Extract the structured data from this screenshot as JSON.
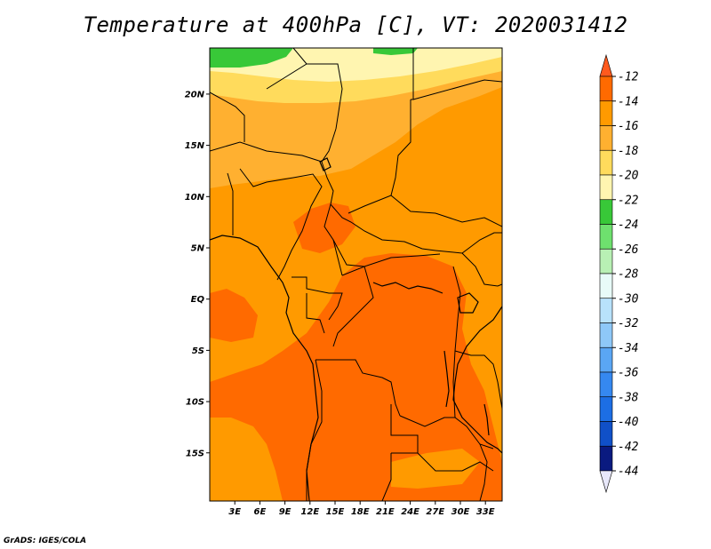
{
  "title": "Temperature at 400hPa [C], VT: 2020031412",
  "credit": "GrADS: IGES/COLA",
  "map": {
    "variable": "Temperature at 400hPa",
    "units": "C",
    "valid_time": "2020031412",
    "lat_ticks": [
      "20N",
      "15N",
      "10N",
      "5N",
      "EQ",
      "5S",
      "10S",
      "15S"
    ],
    "lat_values": [
      20,
      15,
      10,
      5,
      0,
      -5,
      -10,
      -15
    ],
    "lon_ticks": [
      "3E",
      "6E",
      "9E",
      "12E",
      "15E",
      "18E",
      "21E",
      "24E",
      "27E",
      "30E",
      "33E"
    ],
    "lon_values": [
      3,
      6,
      9,
      12,
      15,
      18,
      21,
      24,
      27,
      30,
      33
    ],
    "lat_range": [
      -19.7,
      24.5
    ],
    "lon_range": [
      0,
      35
    ]
  },
  "colorbar": {
    "labels": [
      "-12",
      "-14",
      "-16",
      "-18",
      "-20",
      "-22",
      "-24",
      "-26",
      "-28",
      "-30",
      "-32",
      "-34",
      "-36",
      "-38",
      "-40",
      "-42",
      "-44"
    ],
    "colors": [
      "#ff5a1e",
      "#ff6a00",
      "#ff9a00",
      "#ffb030",
      "#ffdb5c",
      "#fff5b0",
      "#38c838",
      "#6ee06e",
      "#b8f0b4",
      "#e8fbf8",
      "#b8e2fb",
      "#8ec8f8",
      "#5aa6f4",
      "#3588f0",
      "#1c6ee4",
      "#1050c8",
      "#0a1a80",
      "#e8e8fa"
    ],
    "top_arrow_color": "#ff5a1e",
    "bottom_arrow_color": "#e8e8fa"
  }
}
